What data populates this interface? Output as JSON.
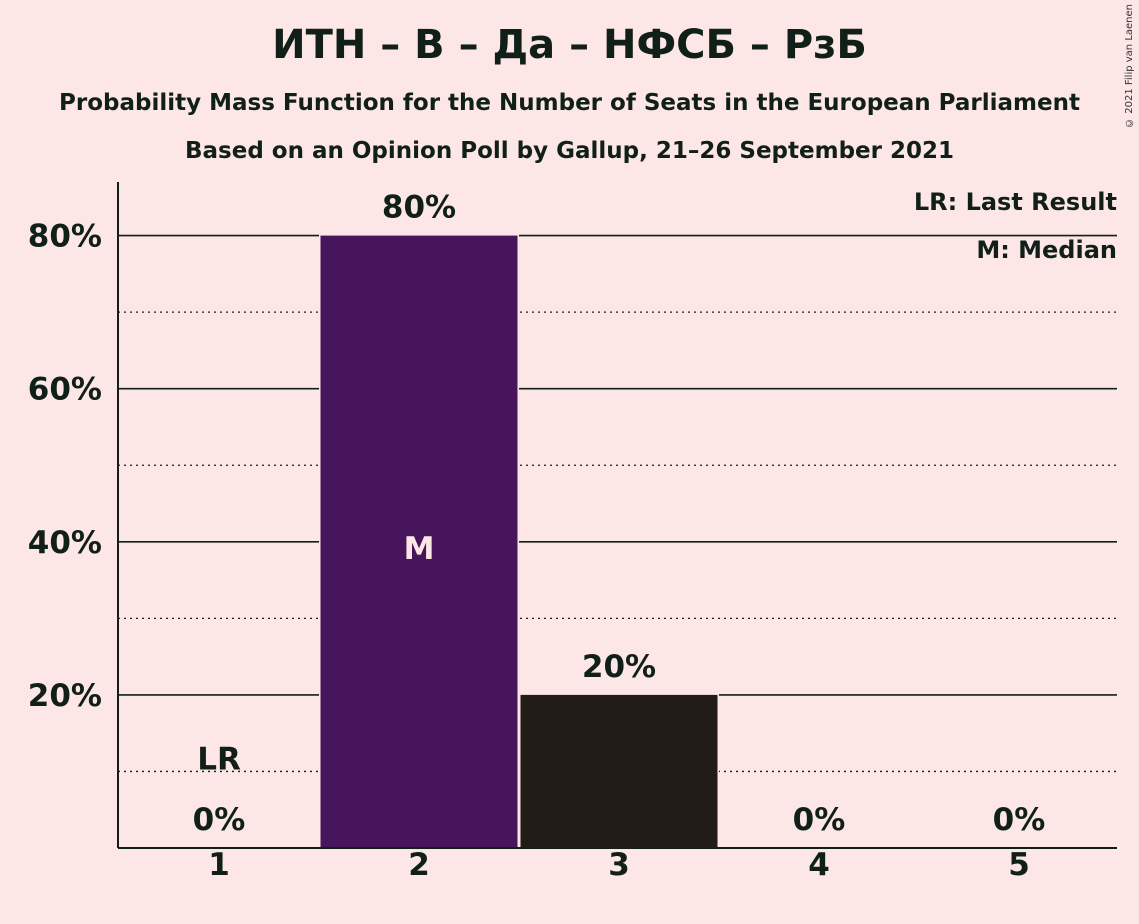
{
  "title": "ИТН – В – Да – НФСБ – РзБ",
  "subtitle": "Probability Mass Function for the Number of Seats in the European Parliament",
  "subtitle2": "Based on an Opinion Poll by Gallup, 21–26 September 2021",
  "copyright": "© 2021 Filip van Laenen",
  "legend": {
    "last_result": "LR: Last Result",
    "median": "M: Median"
  },
  "colors": {
    "background": "#fde6e6",
    "median_bar": "#47155b",
    "other_bar": "#221c19",
    "text": "#102018"
  },
  "chart_data": {
    "type": "bar",
    "title": "ИТН – В – Да – НФСБ – РзБ",
    "xlabel": "",
    "ylabel": "",
    "categories": [
      "1",
      "2",
      "3",
      "4",
      "5"
    ],
    "values": [
      0,
      80,
      20,
      0,
      0
    ],
    "value_labels": [
      "0%",
      "80%",
      "20%",
      "0%",
      "0%"
    ],
    "ylim": [
      0,
      87
    ],
    "yticks": [
      20,
      40,
      60,
      80
    ],
    "ytick_labels": [
      "20%",
      "40%",
      "60%",
      "80%"
    ],
    "minor_gridlines": [
      10,
      30,
      50,
      70
    ],
    "grid": true,
    "legend_position": "top-right",
    "last_result": {
      "category": "1",
      "label": "LR"
    },
    "median": {
      "category": "2",
      "label": "M"
    }
  }
}
